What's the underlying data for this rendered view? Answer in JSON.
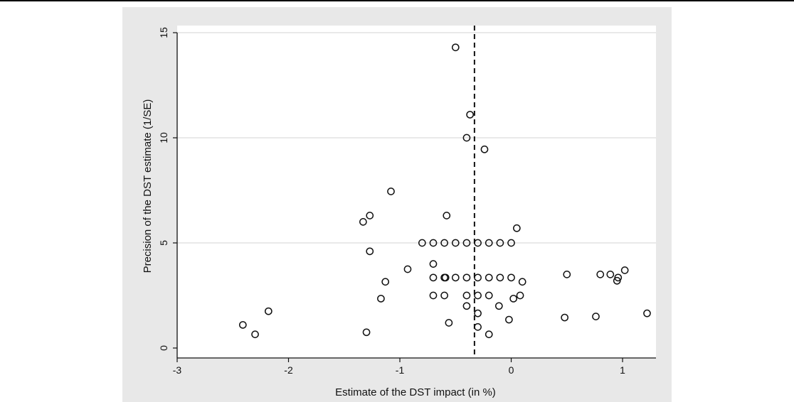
{
  "chart_data": {
    "type": "scatter",
    "title": "",
    "xlabel": "Estimate of the DST impact (in %)",
    "ylabel": "Precision of the DST estimate (1/SE)",
    "xlim": [
      -3.0,
      1.3
    ],
    "ylim": [
      0,
      15
    ],
    "xticks": [
      -3,
      -2,
      -1,
      0,
      1
    ],
    "yticks": [
      0,
      5,
      10,
      15
    ],
    "grid": "horizontal",
    "reference_line": {
      "x": -0.33,
      "style": "dashed"
    },
    "colors": {
      "panel": "#e8e8e8",
      "plot_area": "#ffffff",
      "grid": "#dcdcdc",
      "marker": "#111111"
    },
    "points": [
      {
        "x": -0.5,
        "y": 14.3
      },
      {
        "x": -0.37,
        "y": 11.1
      },
      {
        "x": -0.4,
        "y": 10.0
      },
      {
        "x": -0.24,
        "y": 9.45
      },
      {
        "x": -1.08,
        "y": 7.45
      },
      {
        "x": -1.27,
        "y": 6.3
      },
      {
        "x": -1.33,
        "y": 6.0
      },
      {
        "x": -0.58,
        "y": 6.3
      },
      {
        "x": 0.05,
        "y": 5.7
      },
      {
        "x": -0.8,
        "y": 5.0
      },
      {
        "x": -0.7,
        "y": 5.0
      },
      {
        "x": -0.6,
        "y": 5.0
      },
      {
        "x": -0.5,
        "y": 5.0
      },
      {
        "x": -0.4,
        "y": 5.0
      },
      {
        "x": -0.3,
        "y": 5.0
      },
      {
        "x": -0.2,
        "y": 5.0
      },
      {
        "x": -0.1,
        "y": 5.0
      },
      {
        "x": 0.0,
        "y": 5.0
      },
      {
        "x": -1.27,
        "y": 4.6
      },
      {
        "x": -0.7,
        "y": 4.0
      },
      {
        "x": -0.93,
        "y": 3.75
      },
      {
        "x": -0.7,
        "y": 3.35
      },
      {
        "x": -0.6,
        "y": 3.35
      },
      {
        "x": -0.59,
        "y": 3.35
      },
      {
        "x": -0.5,
        "y": 3.35
      },
      {
        "x": -0.4,
        "y": 3.35
      },
      {
        "x": -0.3,
        "y": 3.35
      },
      {
        "x": -0.2,
        "y": 3.35
      },
      {
        "x": -0.1,
        "y": 3.35
      },
      {
        "x": 0.0,
        "y": 3.35
      },
      {
        "x": -1.13,
        "y": 3.15
      },
      {
        "x": 0.1,
        "y": 3.15
      },
      {
        "x": 0.5,
        "y": 3.5
      },
      {
        "x": 0.8,
        "y": 3.5
      },
      {
        "x": 0.89,
        "y": 3.5
      },
      {
        "x": 0.96,
        "y": 3.35
      },
      {
        "x": 1.02,
        "y": 3.7
      },
      {
        "x": 0.95,
        "y": 3.2
      },
      {
        "x": -0.7,
        "y": 2.5
      },
      {
        "x": -0.6,
        "y": 2.5
      },
      {
        "x": -0.4,
        "y": 2.5
      },
      {
        "x": -0.3,
        "y": 2.5
      },
      {
        "x": -0.2,
        "y": 2.5
      },
      {
        "x": 0.08,
        "y": 2.5
      },
      {
        "x": 0.02,
        "y": 2.35
      },
      {
        "x": -1.17,
        "y": 2.35
      },
      {
        "x": -0.4,
        "y": 2.0
      },
      {
        "x": -0.11,
        "y": 2.0
      },
      {
        "x": -2.18,
        "y": 1.75
      },
      {
        "x": -0.3,
        "y": 1.65
      },
      {
        "x": 0.48,
        "y": 1.45
      },
      {
        "x": 0.76,
        "y": 1.5
      },
      {
        "x": 1.22,
        "y": 1.65
      },
      {
        "x": -0.02,
        "y": 1.35
      },
      {
        "x": -0.56,
        "y": 1.2
      },
      {
        "x": -2.41,
        "y": 1.1
      },
      {
        "x": -0.3,
        "y": 1.0
      },
      {
        "x": -1.3,
        "y": 0.75
      },
      {
        "x": -2.3,
        "y": 0.65
      },
      {
        "x": -0.2,
        "y": 0.65
      }
    ]
  }
}
